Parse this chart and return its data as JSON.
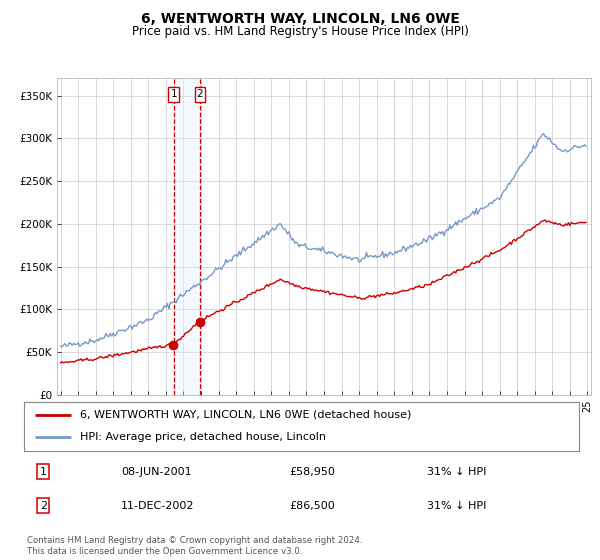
{
  "title": "6, WENTWORTH WAY, LINCOLN, LN6 0WE",
  "subtitle": "Price paid vs. HM Land Registry's House Price Index (HPI)",
  "title_fontsize": 10,
  "subtitle_fontsize": 8.5,
  "background_color": "#ffffff",
  "plot_bg_color": "#ffffff",
  "grid_color": "#cccccc",
  "ylim": [
    0,
    370000
  ],
  "yticks": [
    0,
    50000,
    100000,
    150000,
    200000,
    250000,
    300000,
    350000
  ],
  "ytick_labels": [
    "£0",
    "£50K",
    "£100K",
    "£150K",
    "£200K",
    "£250K",
    "£300K",
    "£350K"
  ],
  "hpi_color": "#7799cc",
  "price_color": "#cc0000",
  "transaction1_date": "08-JUN-2001",
  "transaction1_price": 58950,
  "transaction1_hpi_pct": "31%",
  "transaction2_date": "11-DEC-2002",
  "transaction2_price": 86500,
  "transaction2_hpi_pct": "31%",
  "legend_line1": "6, WENTWORTH WAY, LINCOLN, LN6 0WE (detached house)",
  "legend_line2": "HPI: Average price, detached house, Lincoln",
  "footer": "Contains HM Land Registry data © Crown copyright and database right 2024.\nThis data is licensed under the Open Government Licence v3.0.",
  "t1_x": 2001.44,
  "t2_x": 2002.94,
  "vline_color": "#cc0000",
  "shade_color": "#ddeeff",
  "xlim_left": 1994.8,
  "xlim_right": 2025.2
}
